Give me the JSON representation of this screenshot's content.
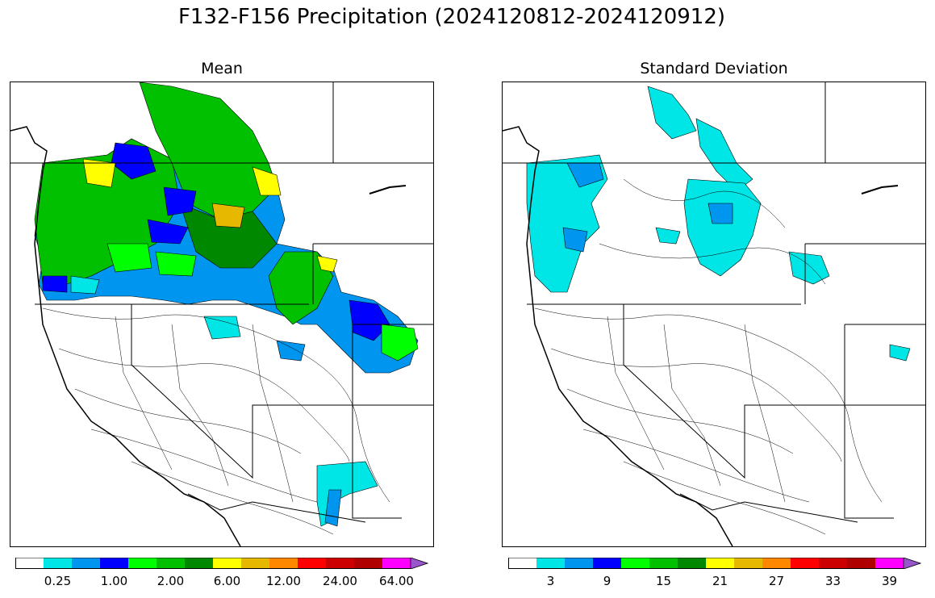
{
  "title": "F132-F156 Precipitation (2024120812-2024120912)",
  "panels": [
    {
      "id": "mean",
      "title": "Mean",
      "colorbar": {
        "colors": [
          "#ffffff",
          "#00e5e5",
          "#0096f0",
          "#0000ff",
          "#00ff00",
          "#00c000",
          "#008800",
          "#ffff00",
          "#e6b800",
          "#ff8800",
          "#ff0000",
          "#cc0000",
          "#b00000",
          "#ff00ff",
          "#9955cc"
        ],
        "tick_labels": [
          "0.25",
          "1.00",
          "2.00",
          "6.00",
          "12.00",
          "24.00",
          "64.00"
        ],
        "extend": "max"
      }
    },
    {
      "id": "stddev",
      "title": "Standard Deviation",
      "colorbar": {
        "colors": [
          "#ffffff",
          "#00e5e5",
          "#0096f0",
          "#0000ff",
          "#00ff00",
          "#00c000",
          "#008800",
          "#ffff00",
          "#e6b800",
          "#ff8800",
          "#ff0000",
          "#cc0000",
          "#b00000",
          "#ff00ff",
          "#9955cc"
        ],
        "tick_labels": [
          "3",
          "9",
          "15",
          "21",
          "27",
          "33",
          "39"
        ],
        "extend": "max"
      }
    }
  ]
}
